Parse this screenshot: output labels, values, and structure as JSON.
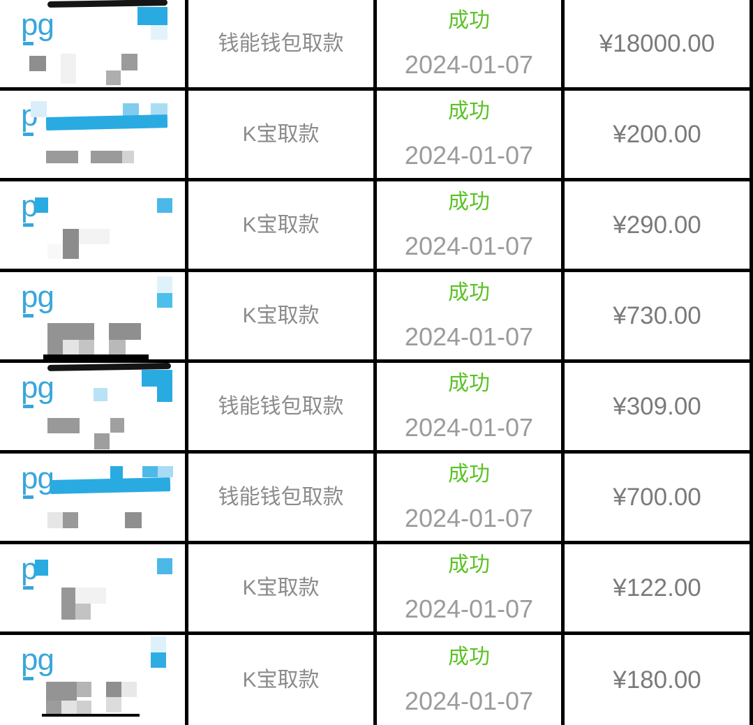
{
  "colors": {
    "border": "#000000",
    "status_green": "#5ac226",
    "label_gray": "#8b8b8b",
    "date_gray": "#9b9b9b",
    "amount_gray": "#7a7a7a",
    "logo_blue": "#3aa6da",
    "accent_blue": "#29abe2"
  },
  "rows": [
    {
      "thumb": {
        "logo": "pg",
        "blocks": [
          [
            68,
            2,
            172,
            9,
            "#151515",
            5,
            -1
          ],
          [
            197,
            10,
            43,
            26,
            "#29abe2"
          ],
          [
            216,
            36,
            24,
            21,
            "#e3f3fb"
          ],
          [
            42,
            80,
            24,
            22,
            "#8e8e8e"
          ],
          [
            87,
            77,
            22,
            43,
            "#f1f1f1"
          ],
          [
            152,
            101,
            21,
            21,
            "#aeaeae"
          ],
          [
            174,
            77,
            23,
            24,
            "#9b9b9b"
          ]
        ]
      },
      "type": "钱能钱包取款",
      "status": "成功",
      "date": "2024-01-07",
      "amount": "¥18000.00"
    },
    {
      "thumb": {
        "logo": "p",
        "blocks": [
          [
            44,
            15,
            23,
            23,
            "#d9eefa"
          ],
          [
            176,
            18,
            23,
            23,
            "#7fccee"
          ],
          [
            216,
            18,
            24,
            23,
            "#a9ddf5"
          ],
          [
            66,
            38,
            174,
            19,
            "#29abe2",
            2,
            -1.3
          ],
          [
            66,
            86,
            46,
            18,
            "#9a9a9a"
          ],
          [
            130,
            86,
            45,
            18,
            "#9a9a9a"
          ],
          [
            175,
            86,
            17,
            18,
            "#d3d3d3"
          ]
        ]
      },
      "type": "K宝取款",
      "status": "成功",
      "date": "2024-01-07",
      "amount": "¥200.00"
    },
    {
      "thumb": {
        "logo": "p",
        "blocks": [
          [
            50,
            23,
            19,
            22,
            "#29abe2"
          ],
          [
            225,
            24,
            22,
            21,
            "#4cb8e8"
          ],
          [
            90,
            68,
            23,
            43,
            "#8c8c8c"
          ],
          [
            113,
            68,
            44,
            22,
            "#f3f3f3"
          ],
          [
            68,
            90,
            22,
            21,
            "#f8f8f8"
          ]
        ]
      },
      "type": "K宝取款",
      "status": "成功",
      "date": "2024-01-07",
      "amount": "¥290.00"
    },
    {
      "thumb": {
        "logo": "pg",
        "blocks": [
          [
            225,
            6,
            22,
            24,
            "#dff2fb"
          ],
          [
            225,
            30,
            22,
            21,
            "#4cc0ea"
          ],
          [
            68,
            73,
            67,
            24,
            "#939393"
          ],
          [
            68,
            97,
            22,
            22,
            "#939393"
          ],
          [
            90,
            97,
            23,
            22,
            "#e4e4e4"
          ],
          [
            113,
            97,
            22,
            22,
            "#c4c4c4"
          ],
          [
            156,
            73,
            46,
            24,
            "#8f8f8f"
          ],
          [
            156,
            97,
            24,
            22,
            "#b9b9b9"
          ],
          [
            62,
            118,
            151,
            8,
            "#000000"
          ]
        ]
      },
      "type": "K宝取款",
      "status": "成功",
      "date": "2024-01-07",
      "amount": "¥730.00"
    },
    {
      "thumb": {
        "logo": "pg",
        "blocks": [
          [
            68,
            3,
            177,
            9,
            "#151515",
            5,
            -1
          ],
          [
            203,
            10,
            44,
            24,
            "#29abe2"
          ],
          [
            225,
            34,
            22,
            22,
            "#29abe2"
          ],
          [
            134,
            36,
            20,
            19,
            "#b8e2f6"
          ],
          [
            68,
            79,
            46,
            22,
            "#999999"
          ],
          [
            158,
            79,
            20,
            21,
            "#a0a0a0"
          ],
          [
            135,
            101,
            22,
            23,
            "#9e9e9e"
          ]
        ]
      },
      "type": "钱能钱包取款",
      "status": "成功",
      "date": "2024-01-07",
      "amount": "¥309.00"
    },
    {
      "thumb": {
        "logo": "pg",
        "blocks": [
          [
            158,
            18,
            18,
            22,
            "#29abe2"
          ],
          [
            204,
            18,
            22,
            16,
            "#4db9e8"
          ],
          [
            226,
            18,
            22,
            16,
            "#a7dcf5"
          ],
          [
            72,
            38,
            172,
            20,
            "#29abe2",
            2,
            -1.3
          ],
          [
            68,
            84,
            22,
            23,
            "#e6e6e6"
          ],
          [
            90,
            84,
            22,
            23,
            "#999999"
          ],
          [
            179,
            84,
            24,
            23,
            "#8f8f8f"
          ]
        ]
      },
      "type": "钱能钱包取款",
      "status": "成功",
      "date": "2024-01-07",
      "amount": "¥700.00"
    },
    {
      "thumb": {
        "logo": "p",
        "blocks": [
          [
            50,
            22,
            19,
            23,
            "#29abe2"
          ],
          [
            225,
            20,
            22,
            23,
            "#4cb8e8"
          ],
          [
            88,
            62,
            20,
            46,
            "#979797"
          ],
          [
            108,
            62,
            44,
            23,
            "#f2f2f2"
          ],
          [
            108,
            85,
            22,
            23,
            "#c3c3c3"
          ]
        ]
      },
      "type": "K宝取款",
      "status": "成功",
      "date": "2024-01-07",
      "amount": "¥122.00"
    },
    {
      "thumb": {
        "logo": "pg",
        "blocks": [
          [
            216,
            2,
            22,
            23,
            "#ddf1fa"
          ],
          [
            216,
            25,
            22,
            22,
            "#2fade3"
          ],
          [
            66,
            67,
            44,
            27,
            "#949494"
          ],
          [
            110,
            67,
            21,
            22,
            "#b5b5b5"
          ],
          [
            152,
            67,
            22,
            22,
            "#8f8f8f"
          ],
          [
            174,
            67,
            22,
            22,
            "#e8e8e8"
          ],
          [
            66,
            94,
            22,
            22,
            "#9c9c9c"
          ],
          [
            88,
            94,
            22,
            22,
            "#e3e3e3"
          ],
          [
            110,
            94,
            21,
            22,
            "#cfcfcf"
          ],
          [
            152,
            89,
            22,
            22,
            "#dcdcdc"
          ],
          [
            60,
            113,
            140,
            4,
            "#000000"
          ]
        ]
      },
      "type": "K宝取款",
      "status": "成功",
      "date": "2024-01-07",
      "amount": "¥180.00"
    }
  ]
}
